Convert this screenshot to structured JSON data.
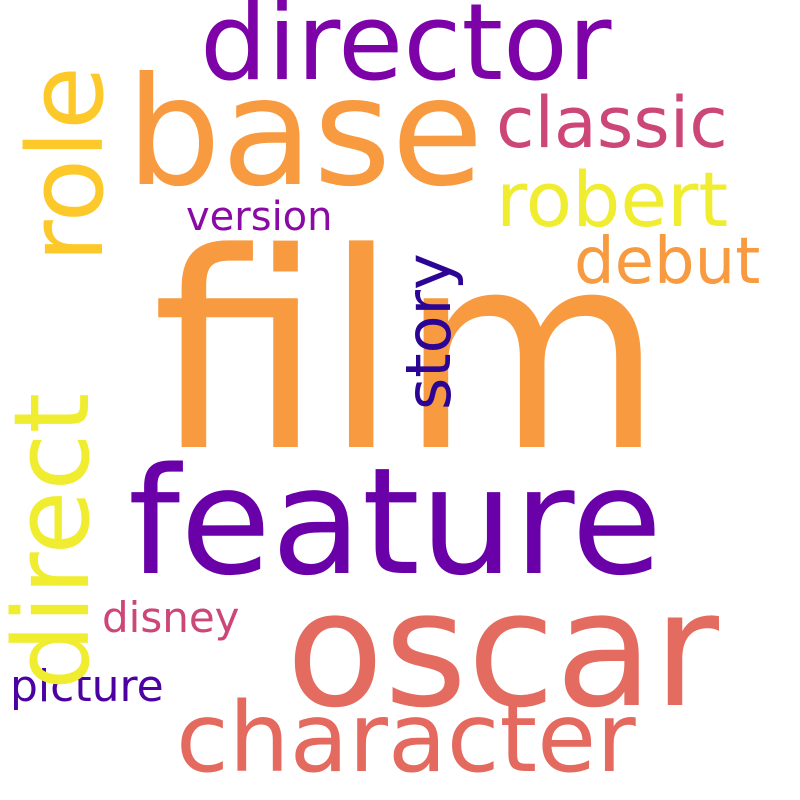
{
  "words": {
    "film": {
      "text": "film",
      "color": "#f89a3f"
    },
    "feature": {
      "text": "feature",
      "color": "#6a00a8"
    },
    "oscar": {
      "text": "oscar",
      "color": "#e36b5f"
    },
    "base": {
      "text": "base",
      "color": "#f89a3f"
    },
    "director": {
      "text": "director",
      "color": "#7d03a8"
    },
    "character": {
      "text": "character",
      "color": "#e4695e"
    },
    "classic": {
      "text": "classic",
      "color": "#cc4778"
    },
    "robert": {
      "text": "robert",
      "color": "#f0ed30"
    },
    "debut": {
      "text": "debut",
      "color": "#f89a3f"
    },
    "version": {
      "text": "version",
      "color": "#8b0aa5"
    },
    "disney": {
      "text": "disney",
      "color": "#cc4778"
    },
    "picture": {
      "text": "picture",
      "color": "#4c02a1"
    },
    "role": {
      "text": "role",
      "color": "#fdc92a"
    },
    "direct": {
      "text": "direct",
      "color": "#f0ed30"
    },
    "story": {
      "text": "story",
      "color": "#2c0594"
    }
  }
}
